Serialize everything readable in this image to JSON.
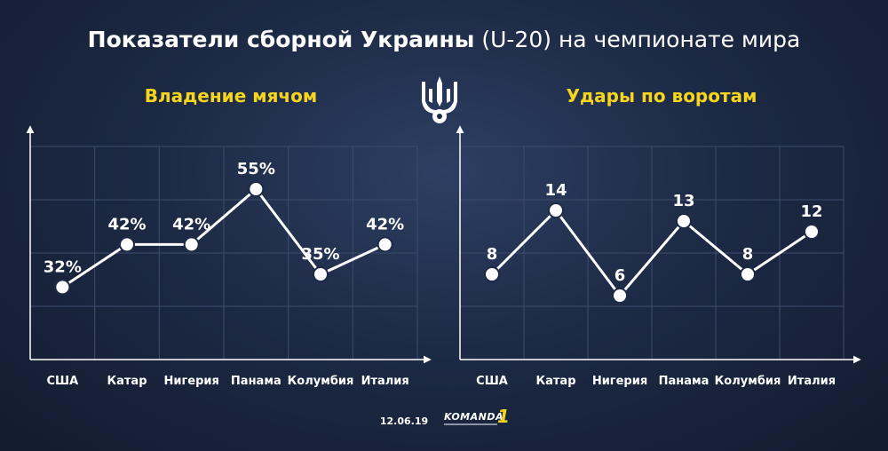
{
  "title": {
    "bold": "Показатели сборной Украины",
    "normal": " (U-20) на чемпионате мира"
  },
  "footer": {
    "date": "12.06.19",
    "logo_text": "KOMANDA",
    "logo_num": "1"
  },
  "chart_data": [
    {
      "type": "line",
      "title": "Владение мячом",
      "categories": [
        "США",
        "Катар",
        "Нигерия",
        "Панама",
        "Колумбия",
        "Италия"
      ],
      "values": [
        32,
        42,
        42,
        55,
        35,
        42
      ],
      "value_labels": [
        "32%",
        "42%",
        "42%",
        "55%",
        "35%",
        "42%"
      ],
      "ylim": [
        15,
        65
      ],
      "xlabel": "",
      "ylabel": "",
      "grid": true,
      "color": "#ffffff"
    },
    {
      "type": "line",
      "title": "Удары по воротам",
      "categories": [
        "США",
        "Катар",
        "Нигерия",
        "Панама",
        "Колумбия",
        "Италия"
      ],
      "values": [
        8,
        14,
        6,
        13,
        8,
        12
      ],
      "value_labels": [
        "8",
        "14",
        "6",
        "13",
        "8",
        "12"
      ],
      "ylim": [
        0,
        20
      ],
      "xlabel": "",
      "ylabel": "",
      "grid": true,
      "color": "#ffffff"
    }
  ],
  "colors": {
    "accent": "#f7d51d",
    "text": "#ffffff",
    "grid": "#3e4c6b",
    "axis": "#ffffff"
  },
  "icons": {
    "emblem": "trident-icon",
    "ball": "football-icon"
  }
}
